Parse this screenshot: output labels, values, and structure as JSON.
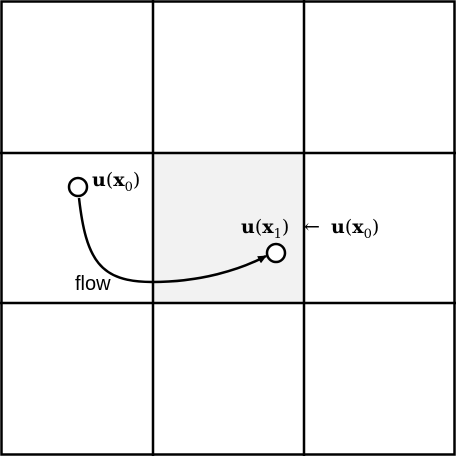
{
  "diagram": {
    "grid": {
      "rows": 3,
      "cols": 3,
      "highlighted_cell": {
        "row": 1,
        "col": 1
      }
    },
    "colors": {
      "line": "#000000",
      "highlight_fill": "#f2f2f2",
      "background": "#ffffff"
    },
    "labels": {
      "start": {
        "func": "u",
        "open": "(",
        "var": "x",
        "sub": "0",
        "close": ")"
      },
      "end": {
        "func": "u",
        "open": "(",
        "var": "x",
        "sub": "1",
        "close": ")"
      },
      "arrow": "←",
      "source": {
        "func": "u",
        "open": "(",
        "var": "x",
        "sub": "0",
        "close": ")"
      },
      "flow": "flow"
    }
  }
}
